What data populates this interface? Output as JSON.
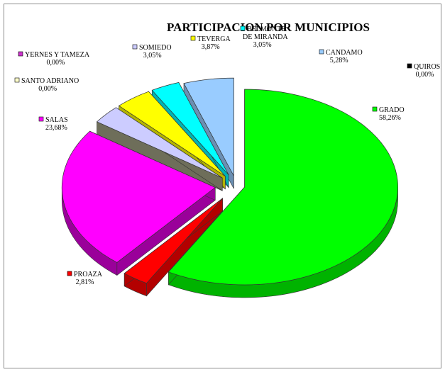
{
  "chart_data": {
    "type": "pie",
    "title": "PARTICIPACION POR MUNICIPIOS",
    "legend_placement": "labels next to slices",
    "slices": [
      {
        "name": "GRADO",
        "name_lines": [
          "GRADO"
        ],
        "value": 58.26,
        "value_label": "58,26%",
        "color": "#00ff00",
        "side": "#00b300"
      },
      {
        "name": "PROAZA",
        "name_lines": [
          "PROAZA"
        ],
        "value": 2.81,
        "value_label": "2,81%",
        "color": "#ff0000",
        "side": "#b30000"
      },
      {
        "name": "SALAS",
        "name_lines": [
          "SALAS"
        ],
        "value": 23.68,
        "value_label": "23,68%",
        "color": "#ff00ff",
        "side": "#9a009a"
      },
      {
        "name": "SANTO ADRIANO",
        "name_lines": [
          "SANTO ADRIANO"
        ],
        "value": 0.0,
        "value_label": "0,00%",
        "color": "#ffffcc",
        "side": "#b3b38f"
      },
      {
        "name": "YERNES Y TAMEZA",
        "name_lines": [
          "YERNES Y TAMEZA"
        ],
        "value": 0.0,
        "value_label": "0,00%",
        "color": "#cc33cc",
        "side": "#8f238f"
      },
      {
        "name": "SOMIEDO",
        "name_lines": [
          "SOMIEDO"
        ],
        "value": 3.05,
        "value_label": "3,05%",
        "color": "#ccccff",
        "side": "#6e6e5a"
      },
      {
        "name": "TEVERGA",
        "name_lines": [
          "TEVERGA"
        ],
        "value": 3.87,
        "value_label": "3,87%",
        "color": "#ffff00",
        "side": "#b3b300"
      },
      {
        "name": "BELMONTE DE MIRANDA",
        "name_lines": [
          "BELMONTE",
          "DE MIRANDA"
        ],
        "value": 3.05,
        "value_label": "3,05%",
        "color": "#00ffff",
        "side": "#00b3b3"
      },
      {
        "name": "CANDAMO",
        "name_lines": [
          "CANDAMO"
        ],
        "value": 5.28,
        "value_label": "5,28%",
        "color": "#99ccff",
        "side": "#6b8fb3"
      },
      {
        "name": "QUIROS",
        "name_lines": [
          "QUIROS"
        ],
        "value": 0.0,
        "value_label": "0,00%",
        "color": "#000000",
        "side": "#000000"
      }
    ]
  }
}
